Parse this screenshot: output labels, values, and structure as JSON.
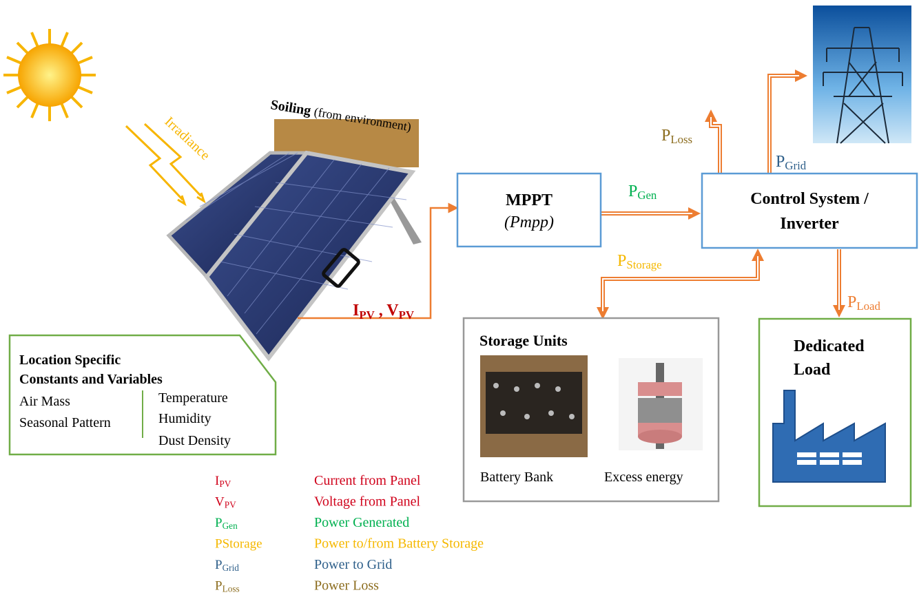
{
  "environment": {
    "irradiance": "Irradiance",
    "soiling": {
      "bold": "Soiling",
      "rest": "(from environment)"
    }
  },
  "panel_output": {
    "current": {
      "main": "I",
      "sub": "PV"
    },
    "separator": ",",
    "voltage": {
      "main": "V",
      "sub": "PV"
    }
  },
  "mppt": {
    "title": "MPPT",
    "subtitle": "(Pmpp)"
  },
  "control": {
    "lines": [
      "Control System /",
      "Inverter"
    ]
  },
  "flows": {
    "gen": {
      "main": "P",
      "sub": "Gen"
    },
    "loss": {
      "main": "P",
      "sub": "Loss"
    },
    "grid": {
      "main": "P",
      "sub": "Grid"
    },
    "storage": {
      "main": "P",
      "sub": "Storage"
    },
    "load": {
      "main": "P",
      "sub": "Load"
    }
  },
  "storage_units": {
    "title": "Storage Units",
    "items": [
      "Battery Bank",
      "Excess energy"
    ]
  },
  "dedicated_load": {
    "lines": [
      "Dedicated",
      "Load"
    ]
  },
  "location": {
    "title": [
      "Location Specific",
      "Constants and Variables"
    ],
    "left": [
      "Air Mass",
      "Seasonal Pattern"
    ],
    "right": [
      "Temperature",
      "Humidity",
      "Dust Density"
    ]
  },
  "legend": [
    {
      "symbol": {
        "main": "I",
        "sub": "PV"
      },
      "description": "Current from Panel",
      "color": "#d0021b"
    },
    {
      "symbol": {
        "main": "V",
        "sub": "PV"
      },
      "description": "Voltage from Panel",
      "color": "#d0021b"
    },
    {
      "symbol": {
        "main": "P",
        "sub": "Gen"
      },
      "description": "Power Generated",
      "color": "#00b050"
    },
    {
      "symbol": {
        "main": "PStorage"
      },
      "description": "Power to/from Battery Storage",
      "color": "#f5b800"
    },
    {
      "symbol": {
        "main": "P",
        "sub": "Grid"
      },
      "description": "Power to Grid",
      "color": "#2e5f8a"
    },
    {
      "symbol": {
        "main": "P",
        "sub": "Loss"
      },
      "description": "Power Loss",
      "color": "#8c6d1f"
    }
  ]
}
